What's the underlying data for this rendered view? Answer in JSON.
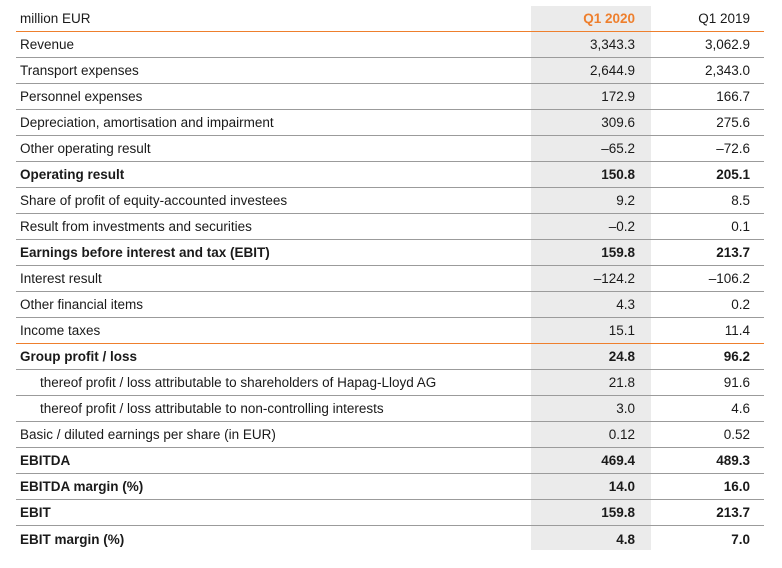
{
  "header": {
    "unit": "million EUR",
    "col1": "Q1 2020",
    "col2": "Q1 2019"
  },
  "rows": [
    {
      "label": "Revenue",
      "v1": "3,343.3",
      "v2": "3,062.9",
      "bold": false,
      "indent": false
    },
    {
      "label": "Transport expenses",
      "v1": "2,644.9",
      "v2": "2,343.0",
      "bold": false,
      "indent": false
    },
    {
      "label": "Personnel expenses",
      "v1": "172.9",
      "v2": "166.7",
      "bold": false,
      "indent": false
    },
    {
      "label": "Depreciation, amortisation and impairment",
      "v1": "309.6",
      "v2": "275.6",
      "bold": false,
      "indent": false
    },
    {
      "label": "Other operating result",
      "v1": "–65.2",
      "v2": "–72.6",
      "bold": false,
      "indent": false
    },
    {
      "label": "Operating result",
      "v1": "150.8",
      "v2": "205.1",
      "bold": true,
      "indent": false
    },
    {
      "label": "Share of profit of equity-accounted investees",
      "v1": "9.2",
      "v2": "8.5",
      "bold": false,
      "indent": false
    },
    {
      "label": "Result from investments and securities",
      "v1": "–0.2",
      "v2": "0.1",
      "bold": false,
      "indent": false
    },
    {
      "label": "Earnings before interest and tax (EBIT)",
      "v1": "159.8",
      "v2": "213.7",
      "bold": true,
      "indent": false
    },
    {
      "label": "Interest result",
      "v1": "–124.2",
      "v2": "–106.2",
      "bold": false,
      "indent": false
    },
    {
      "label": "Other financial items",
      "v1": "4.3",
      "v2": "0.2",
      "bold": false,
      "indent": false
    },
    {
      "label": "Income taxes",
      "v1": "15.1",
      "v2": "11.4",
      "bold": false,
      "indent": false,
      "orange": true
    },
    {
      "label": "Group profit / loss",
      "v1": "24.8",
      "v2": "96.2",
      "bold": true,
      "indent": false
    },
    {
      "label": "thereof profit / loss attributable to shareholders of Hapag-Lloyd AG",
      "v1": "21.8",
      "v2": "91.6",
      "bold": false,
      "indent": true
    },
    {
      "label": "thereof profit / loss attributable to non-controlling interests",
      "v1": "3.0",
      "v2": "4.6",
      "bold": false,
      "indent": true
    },
    {
      "label": "Basic / diluted earnings per share (in EUR)",
      "v1": "0.12",
      "v2": "0.52",
      "bold": false,
      "indent": false
    },
    {
      "label": "EBITDA",
      "v1": "469.4",
      "v2": "489.3",
      "bold": true,
      "indent": false
    },
    {
      "label": "EBITDA margin (%)",
      "v1": "14.0",
      "v2": "16.0",
      "bold": true,
      "indent": false
    },
    {
      "label": "EBIT",
      "v1": "159.8",
      "v2": "213.7",
      "bold": true,
      "indent": false
    },
    {
      "label": "EBIT margin (%)",
      "v1": "4.8",
      "v2": "7.0",
      "bold": true,
      "indent": false
    }
  ]
}
